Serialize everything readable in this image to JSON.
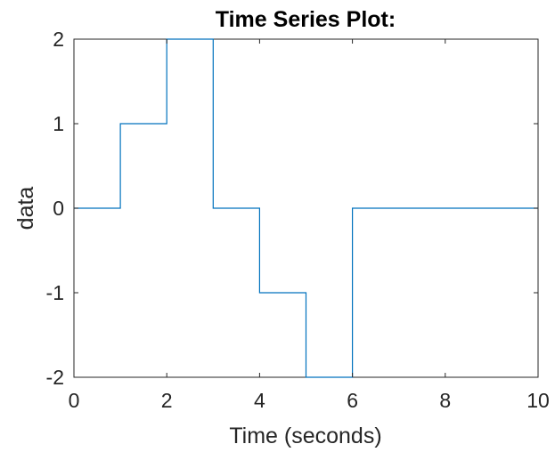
{
  "chart_data": {
    "type": "line",
    "style": "stairs",
    "title": "Time Series Plot:",
    "xlabel": "Time (seconds)",
    "ylabel": "data",
    "xlim": [
      0,
      10
    ],
    "ylim": [
      -2,
      2
    ],
    "xticks": [
      0,
      2,
      4,
      6,
      8,
      10
    ],
    "xtick_labels": [
      "0",
      "2",
      "4",
      "6",
      "8",
      "10"
    ],
    "yticks": [
      -2,
      -1,
      0,
      1,
      2
    ],
    "ytick_labels": [
      "-2",
      "-1",
      "0",
      "1",
      "2"
    ],
    "grid": false,
    "series": [
      {
        "color": "#0072BD",
        "points": [
          {
            "x": 0,
            "y": 0
          },
          {
            "x": 1,
            "y": 1
          },
          {
            "x": 2,
            "y": 2
          },
          {
            "x": 3,
            "y": 0
          },
          {
            "x": 4,
            "y": -1
          },
          {
            "x": 5,
            "y": -2
          },
          {
            "x": 6,
            "y": 0
          },
          {
            "x": 10,
            "y": 0
          }
        ]
      }
    ]
  }
}
